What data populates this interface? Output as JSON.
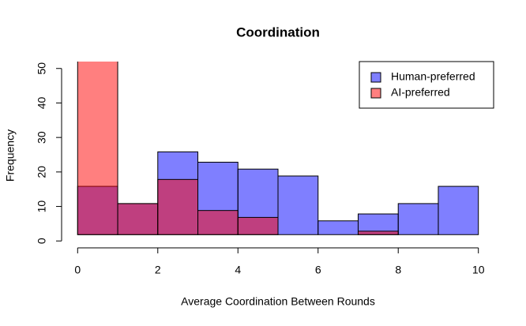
{
  "chart_data": {
    "type": "histogram",
    "title": "Coordination",
    "x_label": "Average Coordination Between Rounds",
    "y_label": "Frequency",
    "bins": [
      0,
      1,
      2,
      3,
      4,
      5,
      6,
      7,
      8,
      9,
      10
    ],
    "series": [
      {
        "name": "Human-preferred",
        "color": "rgba(0,0,255,0.5)",
        "values": [
          14,
          9,
          24,
          21,
          19,
          17,
          4,
          6,
          9,
          14
        ]
      },
      {
        "name": "AI-preferred",
        "color": "rgba(255,0,0,0.5)",
        "values": [
          53,
          9,
          16,
          7,
          5,
          0,
          0,
          1,
          0,
          0
        ]
      }
    ],
    "xlim": [
      -0.4,
      10.4
    ],
    "xticks": [
      0,
      2,
      4,
      6,
      8,
      10
    ],
    "ylim": [
      -2,
      52
    ],
    "yticks": [
      0,
      10,
      20,
      30,
      40,
      50
    ],
    "legend": "topright"
  }
}
